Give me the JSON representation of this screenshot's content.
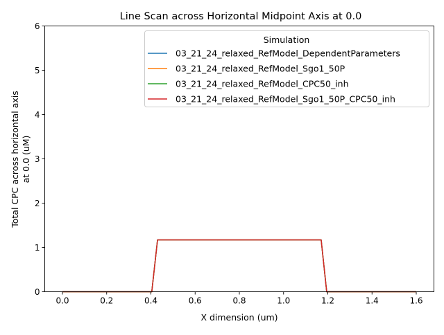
{
  "chart_data": {
    "type": "line",
    "title": "Line Scan across Horizontal Midpoint Axis at 0.0",
    "xlabel": "X dimension (um)",
    "ylabel_line1": "Total CPC across horizontal axis",
    "ylabel_line2": "at 0.0 (uM)",
    "xlim": [
      -0.08,
      1.68
    ],
    "ylim": [
      0,
      6
    ],
    "x_ticks": [
      0.0,
      0.2,
      0.4,
      0.6,
      0.8,
      1.0,
      1.2,
      1.4,
      1.6
    ],
    "x_tick_labels": [
      "0.0",
      "0.2",
      "0.4",
      "0.6",
      "0.8",
      "1.0",
      "1.2",
      "1.4",
      "1.6"
    ],
    "y_ticks": [
      0,
      1,
      2,
      3,
      4,
      5,
      6
    ],
    "y_tick_labels": [
      "0",
      "1",
      "2",
      "3",
      "4",
      "5",
      "6"
    ],
    "grid": false,
    "legend": {
      "title": "Simulation",
      "placement": "top-right"
    },
    "series": [
      {
        "name": "03_21_24_relaxed_RefModel_DependentParameters",
        "color": "#1f77b4",
        "x": [
          0.0,
          0.404,
          0.43,
          1.17,
          1.195,
          1.6
        ],
        "y": [
          0.0,
          0.0,
          1.17,
          1.17,
          0.0,
          0.0
        ]
      },
      {
        "name": "03_21_24_relaxed_RefModel_Sgo1_50P",
        "color": "#ff7f0e",
        "x": [
          0.0,
          0.404,
          0.43,
          1.17,
          1.195,
          1.6
        ],
        "y": [
          0.0,
          0.0,
          1.17,
          1.17,
          0.0,
          0.0
        ]
      },
      {
        "name": "03_21_24_relaxed_RefModel_CPC50_inh",
        "color": "#2ca02c",
        "x": [
          0.0,
          0.404,
          0.43,
          1.17,
          1.195,
          1.6
        ],
        "y": [
          0.0,
          0.0,
          1.17,
          1.17,
          0.0,
          0.0
        ]
      },
      {
        "name": "03_21_24_relaxed_RefModel_Sgo1_50P_CPC50_inh",
        "color": "#d62728",
        "x": [
          0.0,
          0.404,
          0.43,
          1.17,
          1.195,
          1.6
        ],
        "y": [
          0.0,
          0.0,
          1.17,
          1.17,
          0.0,
          0.0
        ]
      }
    ]
  }
}
